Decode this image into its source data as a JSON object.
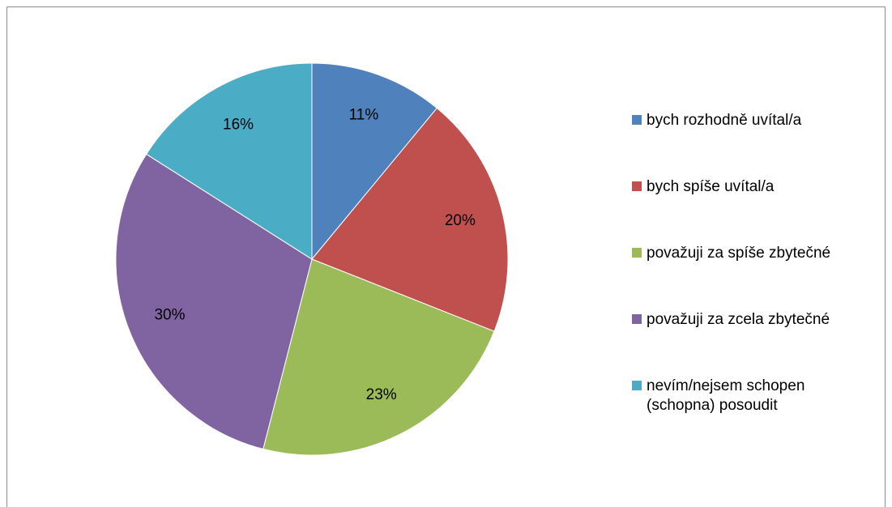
{
  "chart_data": {
    "type": "pie",
    "categories": [
      "bych rozhodně uvítal/a",
      "bych spíše uvítal/a",
      "považuji za spíše zbytečné",
      "považuji za zcela zbytečné",
      "nevím/nejsem schopen (schopna) posoudit"
    ],
    "values": [
      11,
      20,
      23,
      30,
      16
    ],
    "value_labels": [
      "11%",
      "20%",
      "23%",
      "30%",
      "16%"
    ],
    "colors": [
      "#4f81bd",
      "#c0504d",
      "#9bbb59",
      "#8064a2",
      "#4bacc6"
    ],
    "legend": "right"
  }
}
